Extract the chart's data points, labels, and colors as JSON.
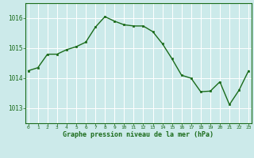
{
  "x": [
    0,
    1,
    2,
    3,
    4,
    5,
    6,
    7,
    8,
    9,
    10,
    11,
    12,
    13,
    14,
    15,
    16,
    17,
    18,
    19,
    20,
    21,
    22,
    23
  ],
  "y": [
    1014.25,
    1014.35,
    1014.8,
    1014.8,
    1014.95,
    1015.05,
    1015.2,
    1015.7,
    1016.05,
    1015.9,
    1015.78,
    1015.74,
    1015.74,
    1015.55,
    1015.15,
    1014.65,
    1014.1,
    1014.0,
    1013.55,
    1013.57,
    1013.88,
    1013.12,
    1013.6,
    1014.25
  ],
  "line_color": "#1a6b1a",
  "marker_color": "#1a6b1a",
  "bg_color": "#cceaea",
  "grid_color": "#ffffff",
  "text_color": "#1a6b1a",
  "xlabel": "Graphe pression niveau de la mer (hPa)",
  "ylim_min": 1012.5,
  "ylim_max": 1016.5,
  "yticks": [
    1013,
    1014,
    1015,
    1016
  ],
  "xticks": [
    0,
    1,
    2,
    3,
    4,
    5,
    6,
    7,
    8,
    9,
    10,
    11,
    12,
    13,
    14,
    15,
    16,
    17,
    18,
    19,
    20,
    21,
    22,
    23
  ]
}
